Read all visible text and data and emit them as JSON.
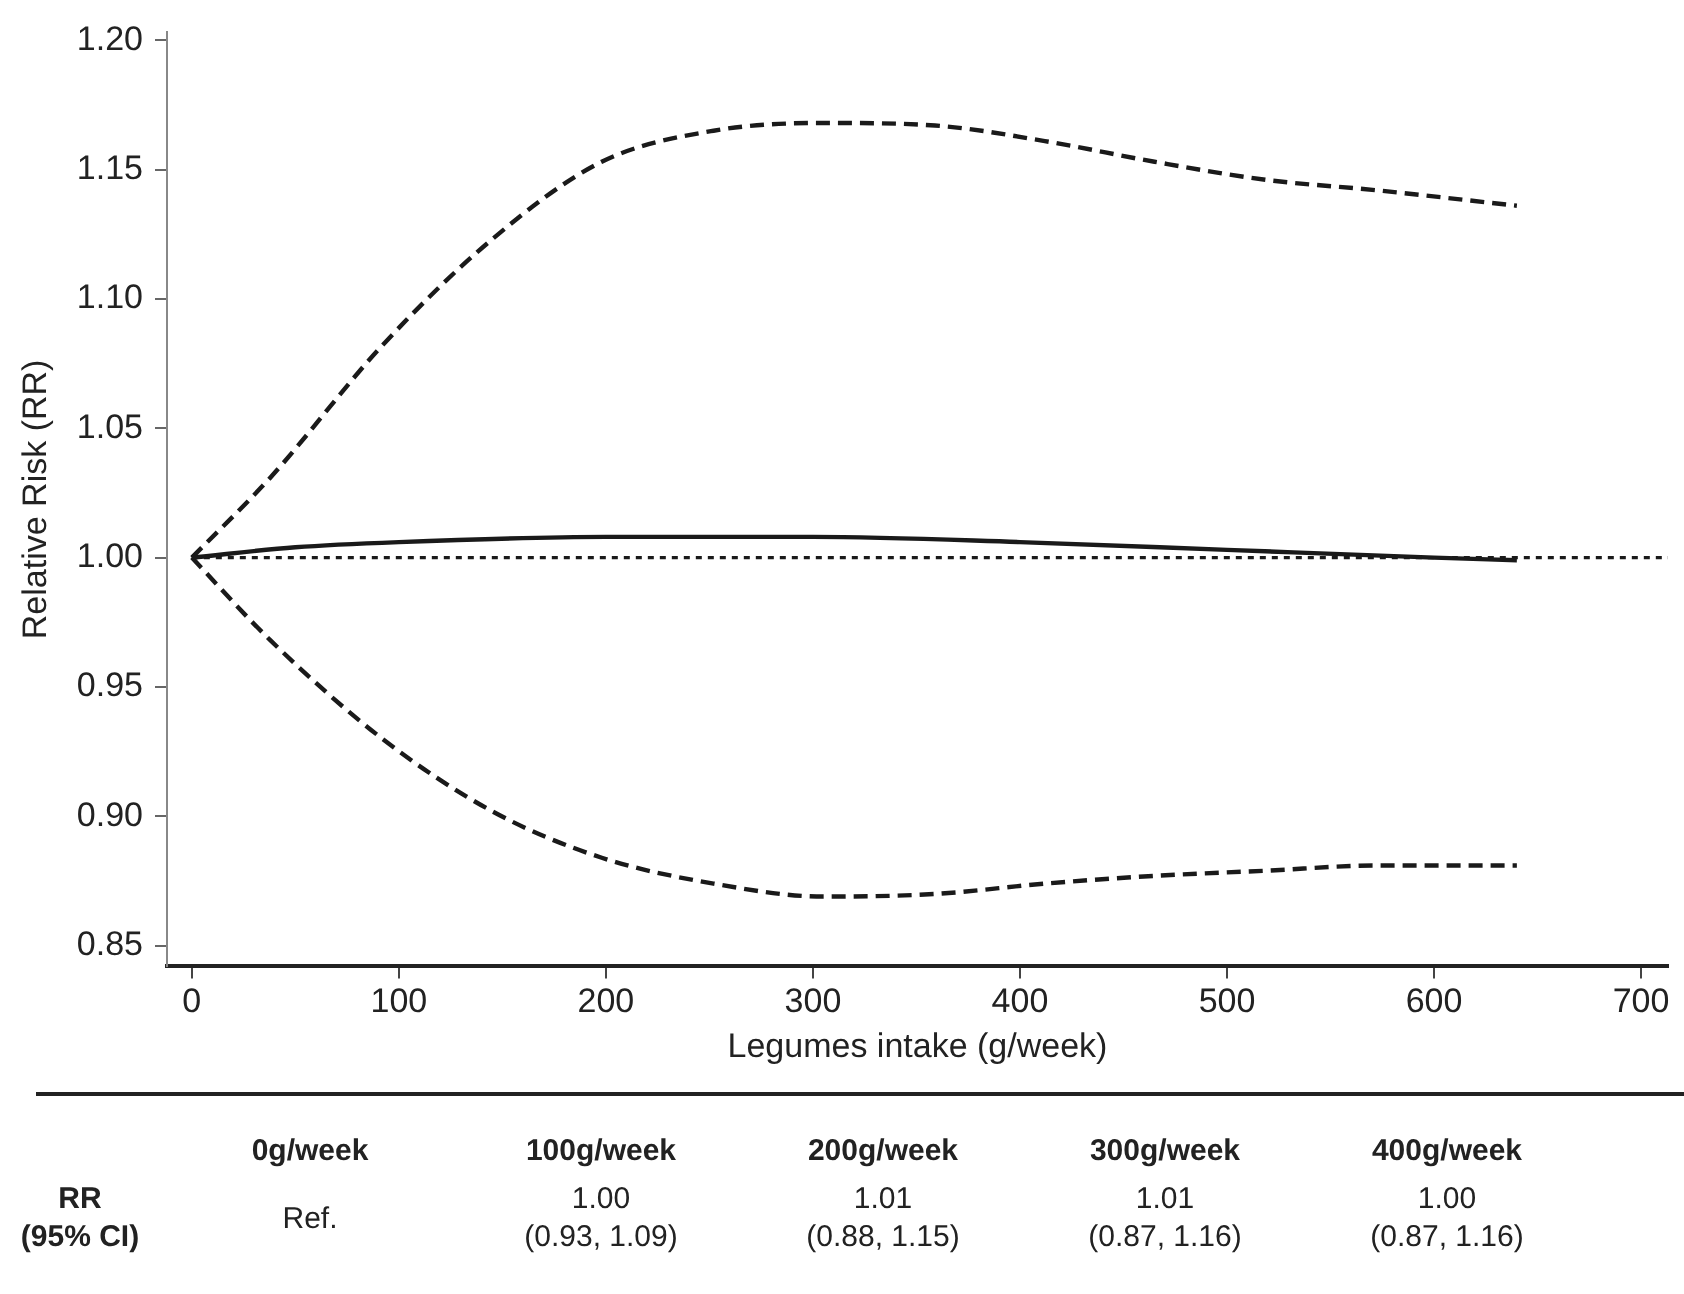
{
  "chart_data": {
    "type": "line",
    "xlabel": "Legumes intake (g/week)",
    "ylabel": "Relative Risk (RR)",
    "xlim": [
      -12,
      713
    ],
    "xticks": [
      0,
      100,
      200,
      300,
      400,
      500,
      600,
      700
    ],
    "ylim": [
      0.842,
      1.203
    ],
    "yticks": [
      {
        "value": 0.85,
        "label": "0.85"
      },
      {
        "value": 0.9,
        "label": "0.90"
      },
      {
        "value": 0.95,
        "label": "0.95"
      },
      {
        "value": 1.0,
        "label": "1.00"
      },
      {
        "value": 1.05,
        "label": "1.05"
      },
      {
        "value": 1.1,
        "label": "1.10"
      },
      {
        "value": 1.15,
        "label": "1.15"
      },
      {
        "value": 1.2,
        "label": "1.20"
      }
    ],
    "grid": false,
    "legend": false,
    "marker": "none",
    "series": [
      {
        "color": "#1a1a1a",
        "line_style": "solid",
        "x": [
          0,
          50,
          100,
          200,
          300,
          400,
          500,
          600,
          640
        ],
        "values": [
          1.0,
          1.004,
          1.006,
          1.008,
          1.008,
          1.006,
          1.003,
          1.0,
          0.999
        ]
      },
      {
        "color": "#1a1a1a",
        "line_style": "dashed",
        "x": [
          0,
          38,
          92,
          145,
          198,
          252,
          305,
          359,
          412,
          465,
          519,
          572,
          640
        ],
        "values": [
          1.0,
          1.031,
          1.082,
          1.123,
          1.153,
          1.165,
          1.168,
          1.167,
          1.161,
          1.153,
          1.146,
          1.142,
          1.136
        ]
      },
      {
        "color": "#1a1a1a",
        "line_style": "dashed",
        "x": [
          0,
          38,
          92,
          145,
          198,
          252,
          305,
          359,
          412,
          465,
          519,
          572,
          640
        ],
        "values": [
          1.0,
          0.968,
          0.93,
          0.902,
          0.884,
          0.874,
          0.869,
          0.87,
          0.874,
          0.877,
          0.879,
          0.881,
          0.881
        ]
      }
    ],
    "ref_lines": [
      {
        "axis": "y",
        "value": 1.0,
        "line_style": "dotted",
        "color": "#1a1a1a"
      }
    ],
    "annotations": [
      "0g/week",
      "100g/week",
      "200g/week",
      "300g/week",
      "400g/week",
      "RR\n(95% CI)",
      "Ref.",
      "1.00\n(0.93, 1.09)",
      "1.01\n(0.88, 1.15)",
      "1.01\n(0.87, 1.16)",
      "1.00\n(0.87, 1.16)"
    ]
  }
}
